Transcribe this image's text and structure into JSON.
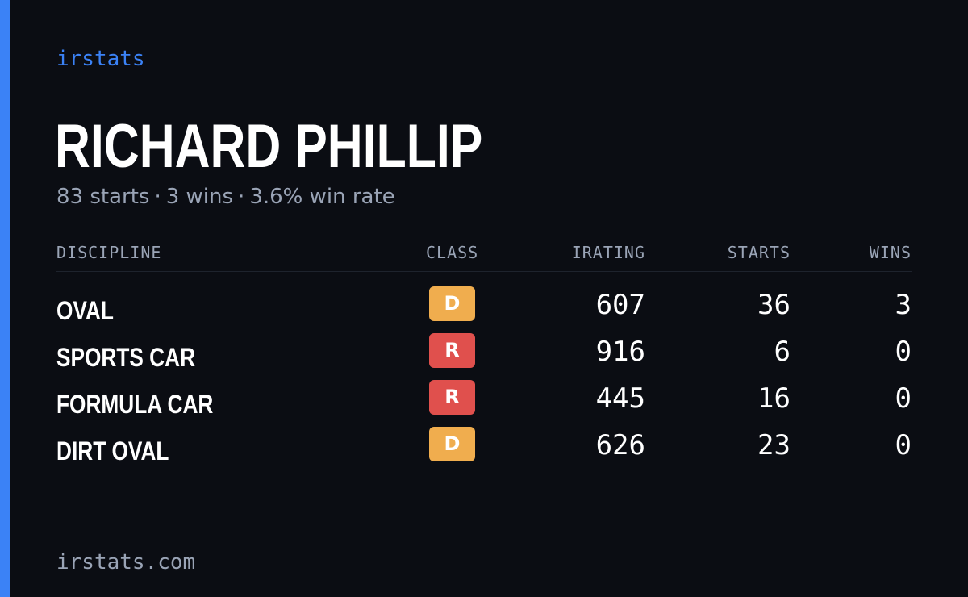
{
  "brand": "irstats",
  "driver": {
    "name": "RICHARD PHILLIP",
    "starts_text": "83 starts",
    "wins_text": "3 wins",
    "winrate_text": "3.6% win rate",
    "separator": "·"
  },
  "table": {
    "headers": {
      "discipline": "DISCIPLINE",
      "class": "CLASS",
      "irating": "IRATING",
      "starts": "STARTS",
      "wins": "WINS"
    },
    "rows": [
      {
        "discipline": "OVAL",
        "class": "D",
        "irating": "607",
        "starts": "36",
        "wins": "3"
      },
      {
        "discipline": "SPORTS CAR",
        "class": "R",
        "irating": "916",
        "starts": "6",
        "wins": "0"
      },
      {
        "discipline": "FORMULA CAR",
        "class": "R",
        "irating": "445",
        "starts": "16",
        "wins": "0"
      },
      {
        "discipline": "DIRT OVAL",
        "class": "D",
        "irating": "626",
        "starts": "23",
        "wins": "0"
      }
    ]
  },
  "footer": "irstats.com",
  "colors": {
    "background": "#0b0d13",
    "accent": "#3b82f6",
    "muted_text": "#9aa4b6",
    "class_d": "#f0ad4e",
    "class_r": "#e0504d"
  }
}
